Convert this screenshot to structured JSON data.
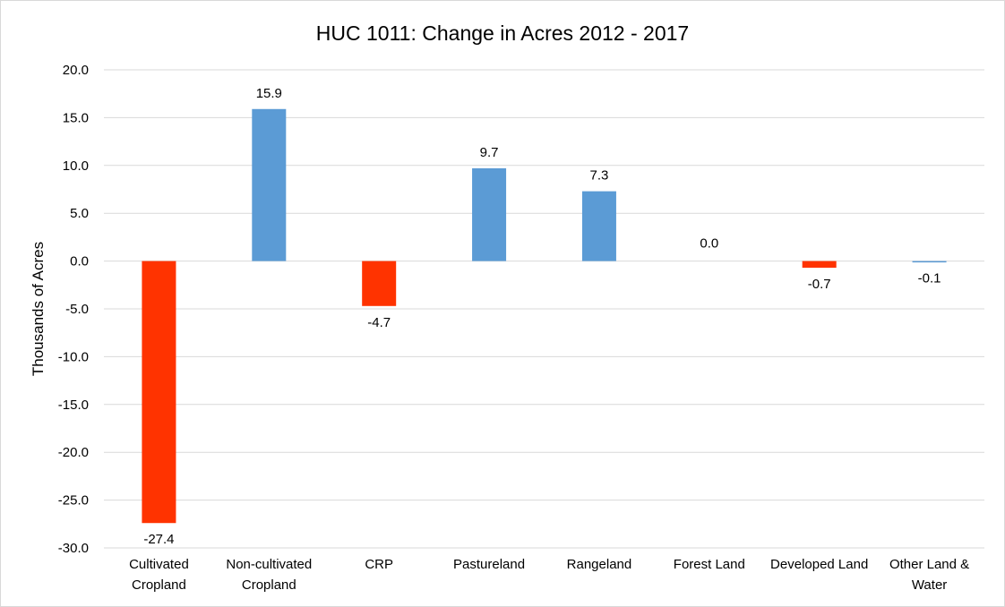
{
  "chart_data": {
    "type": "bar",
    "title": "HUC 1011: Change in Acres 2012 - 2017",
    "ylabel": "Thousands of Acres",
    "xlabel": "",
    "ylim": [
      -30,
      20
    ],
    "ytick_step": 5,
    "ytick_labels": [
      "20.0",
      "15.0",
      "10.0",
      "5.0",
      "0.0",
      "-5.0",
      "-10.0",
      "-15.0",
      "-20.0",
      "-25.0",
      "-30.0"
    ],
    "grid": true,
    "legend": "none",
    "categories": [
      [
        "Cultivated",
        "Cropland"
      ],
      [
        "Non-cultivated",
        "Cropland"
      ],
      [
        "CRP"
      ],
      [
        "Pastureland"
      ],
      [
        "Rangeland"
      ],
      [
        "Forest Land"
      ],
      [
        "Developed Land"
      ],
      [
        "Other Land &",
        "Water"
      ]
    ],
    "values": [
      -27.4,
      15.9,
      -4.7,
      9.7,
      7.3,
      0.0,
      -0.7,
      -0.1
    ],
    "data_labels": [
      "-27.4",
      "15.9",
      "-4.7",
      "9.7",
      "7.3",
      "0.0",
      "-0.7",
      "-0.1"
    ],
    "colors": {
      "positive": "#5b9bd5",
      "negative": "#ff3300",
      "grid": "#d9d9d9"
    }
  }
}
